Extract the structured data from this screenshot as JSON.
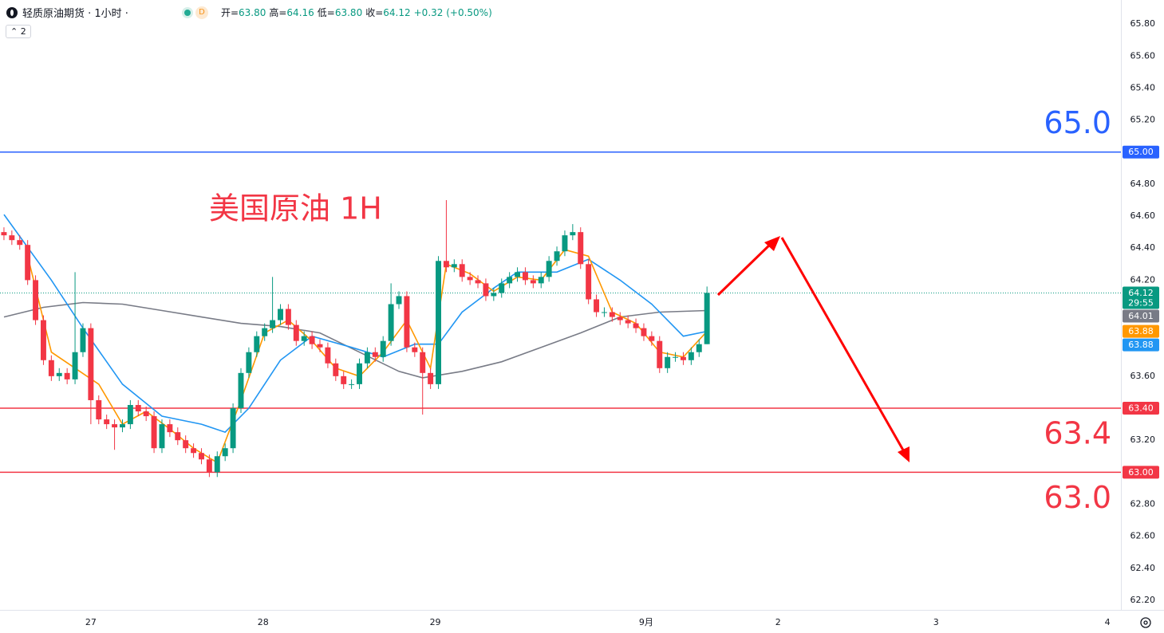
{
  "header": {
    "symbol": "轻质原油期货 · 1小时 ·",
    "badge": "D",
    "ohlc": [
      {
        "label": "开=",
        "value": "63.80"
      },
      {
        "label": "高=",
        "value": "64.16"
      },
      {
        "label": "低=",
        "value": "63.80"
      },
      {
        "label": "收=",
        "value": "64.12"
      }
    ],
    "change": "+0.32 (+0.50%)",
    "indicator_count": "2"
  },
  "chart_data": {
    "type": "candlestick",
    "annotation": "美国原油 1H",
    "up_color": "#089981",
    "down_color": "#f23645",
    "x": [
      0,
      1,
      2,
      3,
      4,
      5,
      6,
      7,
      8,
      9,
      10,
      11,
      12,
      13,
      14,
      15,
      16,
      17,
      18,
      19,
      20,
      21,
      22,
      23,
      24,
      25,
      26,
      27,
      28,
      29,
      30,
      31,
      32,
      33,
      34,
      35,
      36,
      37,
      38,
      39,
      40,
      41,
      42,
      43,
      44,
      45,
      46,
      47,
      48,
      49,
      50,
      51,
      52,
      53,
      54,
      55,
      56,
      57,
      58,
      59,
      60,
      61,
      62,
      63,
      64,
      65,
      66,
      67,
      68,
      69,
      70,
      71,
      72,
      73,
      74,
      75,
      76,
      77,
      78,
      79,
      80,
      81,
      82,
      83,
      84,
      85,
      86,
      87,
      88,
      89
    ],
    "open": [
      64.5,
      64.48,
      64.45,
      64.42,
      64.2,
      63.95,
      63.7,
      63.6,
      63.62,
      63.58,
      63.75,
      63.9,
      63.45,
      63.33,
      63.3,
      63.28,
      63.3,
      63.42,
      63.38,
      63.35,
      63.15,
      63.3,
      63.25,
      63.2,
      63.15,
      63.12,
      63.08,
      63.0,
      63.1,
      63.15,
      63.4,
      63.62,
      63.75,
      63.85,
      63.9,
      63.95,
      64.02,
      63.92,
      63.82,
      63.85,
      63.8,
      63.78,
      63.68,
      63.6,
      63.55,
      63.55,
      63.68,
      63.75,
      63.72,
      63.82,
      64.05,
      64.1,
      63.78,
      63.75,
      63.62,
      63.55,
      64.32,
      64.28,
      64.3,
      64.22,
      64.2,
      64.18,
      64.1,
      64.12,
      64.18,
      64.22,
      64.25,
      64.2,
      64.18,
      64.22,
      64.32,
      64.38,
      64.48,
      64.5,
      64.3,
      64.08,
      64.0,
      64.0,
      63.97,
      63.95,
      63.93,
      63.9,
      63.85,
      63.82,
      63.65,
      63.72,
      63.72,
      63.7,
      63.75,
      63.8
    ],
    "high": [
      64.53,
      64.51,
      64.48,
      64.45,
      64.23,
      63.98,
      63.73,
      63.65,
      63.65,
      64.25,
      63.93,
      63.93,
      63.48,
      63.36,
      63.33,
      63.33,
      63.45,
      63.45,
      63.41,
      63.38,
      63.33,
      63.33,
      63.28,
      63.23,
      63.18,
      63.15,
      63.11,
      63.13,
      63.18,
      63.43,
      63.65,
      63.78,
      63.88,
      63.93,
      64.22,
      64.05,
      64.05,
      63.95,
      63.88,
      63.88,
      63.83,
      63.81,
      63.71,
      63.63,
      63.58,
      63.71,
      63.78,
      63.78,
      63.85,
      64.18,
      64.13,
      64.13,
      63.81,
      63.78,
      63.65,
      64.35,
      64.7,
      64.33,
      64.33,
      64.25,
      64.23,
      64.21,
      64.15,
      64.21,
      64.25,
      64.28,
      64.28,
      64.23,
      64.25,
      64.35,
      64.41,
      64.51,
      64.55,
      64.53,
      64.33,
      64.11,
      64.03,
      64.03,
      64.0,
      63.98,
      63.96,
      63.93,
      63.88,
      63.85,
      63.75,
      63.75,
      63.75,
      63.78,
      63.83,
      64.16
    ],
    "low": [
      64.45,
      64.42,
      64.39,
      64.17,
      63.92,
      63.67,
      63.57,
      63.57,
      63.55,
      63.55,
      63.72,
      63.3,
      63.3,
      63.27,
      63.14,
      63.25,
      63.27,
      63.35,
      63.32,
      63.12,
      63.12,
      63.22,
      63.17,
      63.12,
      63.09,
      63.05,
      62.97,
      62.97,
      63.07,
      63.12,
      63.37,
      63.59,
      63.72,
      63.82,
      63.87,
      63.92,
      63.89,
      63.79,
      63.79,
      63.77,
      63.75,
      63.65,
      63.57,
      63.52,
      63.52,
      63.52,
      63.65,
      63.69,
      63.69,
      63.79,
      64.02,
      63.75,
      63.72,
      63.36,
      63.52,
      63.52,
      64.25,
      64.25,
      64.19,
      64.17,
      64.15,
      64.07,
      64.07,
      64.09,
      64.15,
      64.19,
      64.17,
      64.15,
      64.15,
      64.19,
      64.29,
      64.35,
      64.45,
      64.27,
      64.05,
      63.97,
      63.97,
      63.94,
      63.92,
      63.9,
      63.87,
      63.82,
      63.79,
      63.62,
      63.62,
      63.69,
      63.67,
      63.67,
      63.72,
      63.8
    ],
    "close": [
      64.48,
      64.45,
      64.42,
      64.2,
      63.95,
      63.7,
      63.6,
      63.62,
      63.58,
      63.75,
      63.9,
      63.45,
      63.33,
      63.3,
      63.28,
      63.3,
      63.42,
      63.38,
      63.35,
      63.15,
      63.3,
      63.25,
      63.2,
      63.15,
      63.12,
      63.08,
      63.0,
      63.1,
      63.15,
      63.4,
      63.62,
      63.75,
      63.85,
      63.9,
      63.95,
      64.02,
      63.92,
      63.82,
      63.85,
      63.8,
      63.78,
      63.68,
      63.6,
      63.55,
      63.55,
      63.68,
      63.75,
      63.72,
      63.82,
      64.05,
      64.1,
      63.78,
      63.75,
      63.62,
      63.55,
      64.32,
      64.28,
      64.3,
      64.22,
      64.2,
      64.18,
      64.1,
      64.12,
      64.18,
      64.22,
      64.25,
      64.2,
      64.18,
      64.22,
      64.32,
      64.38,
      64.48,
      64.5,
      64.3,
      64.08,
      64.0,
      64.0,
      63.97,
      63.95,
      63.93,
      63.9,
      63.85,
      63.82,
      63.65,
      63.72,
      63.72,
      63.7,
      63.75,
      63.8,
      64.12
    ],
    "series": [
      {
        "color": "#787b86",
        "x": [
          0,
          5,
          10,
          15,
          20,
          25,
          30,
          35,
          40,
          45,
          50,
          53,
          58,
          63,
          68,
          73,
          78,
          83,
          89
        ],
        "values": [
          63.97,
          64.03,
          64.06,
          64.05,
          64.01,
          63.97,
          63.93,
          63.91,
          63.87,
          63.75,
          63.63,
          63.59,
          63.63,
          63.69,
          63.78,
          63.87,
          63.97,
          64.0,
          64.01
        ]
      },
      {
        "color": "#2196f3",
        "x": [
          0,
          6,
          10,
          15,
          20,
          25,
          28,
          31,
          35,
          39,
          44,
          48,
          52,
          55,
          58,
          62,
          65,
          70,
          74,
          78,
          82,
          86,
          89
        ],
        "values": [
          64.61,
          64.2,
          63.9,
          63.55,
          63.35,
          63.3,
          63.25,
          63.4,
          63.7,
          63.85,
          63.78,
          63.72,
          63.8,
          63.8,
          64.0,
          64.15,
          64.25,
          64.25,
          64.33,
          64.2,
          64.05,
          63.85,
          63.88
        ]
      },
      {
        "color": "#ff9800",
        "x": [
          3,
          6,
          9,
          12,
          15,
          18,
          21,
          24,
          27,
          30,
          33,
          36,
          39,
          42,
          45,
          48,
          51,
          54,
          56,
          59,
          62,
          65,
          68,
          71,
          74,
          77,
          80,
          83,
          86,
          89
        ],
        "values": [
          64.35,
          63.75,
          63.65,
          63.55,
          63.3,
          63.38,
          63.27,
          63.15,
          63.06,
          63.45,
          63.87,
          63.95,
          63.82,
          63.65,
          63.6,
          63.75,
          63.95,
          63.65,
          64.3,
          64.24,
          64.13,
          64.22,
          64.2,
          64.39,
          64.35,
          64.0,
          63.93,
          63.75,
          63.72,
          63.88
        ]
      }
    ],
    "xlim": [
      -0.5,
      141.4
    ],
    "xticks": [
      {
        "value": 11,
        "label": "27"
      },
      {
        "value": 32.8,
        "label": "28"
      },
      {
        "value": 54.6,
        "label": "29"
      },
      {
        "value": 81.3,
        "label": "9月"
      },
      {
        "value": 98,
        "label": "2"
      },
      {
        "value": 118,
        "label": "3"
      },
      {
        "value": 139.7,
        "label": "4"
      }
    ],
    "ylim": [
      62.14,
      65.95
    ],
    "yticks": [
      {
        "value": 65.8,
        "label": "65.80"
      },
      {
        "value": 65.6,
        "label": "65.60"
      },
      {
        "value": 65.4,
        "label": "65.40"
      },
      {
        "value": 65.2,
        "label": "65.20"
      },
      {
        "value": 64.8,
        "label": "64.80"
      },
      {
        "value": 64.6,
        "label": "64.60"
      },
      {
        "value": 64.4,
        "label": "64.40"
      },
      {
        "value": 64.2,
        "label": "64.20"
      },
      {
        "value": 63.6,
        "label": "63.60"
      },
      {
        "value": 63.2,
        "label": "63.20"
      },
      {
        "value": 62.8,
        "label": "62.80"
      },
      {
        "value": 62.6,
        "label": "62.60"
      },
      {
        "value": 62.4,
        "label": "62.40"
      },
      {
        "value": 62.2,
        "label": "62.20"
      }
    ],
    "hlines": [
      {
        "value": 65.0,
        "annotation": "65.0",
        "color": "#2962ff"
      },
      {
        "value": 63.4,
        "annotation": "63.4",
        "color": "#f23645"
      },
      {
        "value": 63.0,
        "annotation": "63.0",
        "color": "#f23645"
      }
    ],
    "price_tags": [
      {
        "value": 65.0,
        "label": "65.00",
        "color": "#2962ff"
      },
      {
        "value": 64.12,
        "label": "64.12",
        "sublabel": "29:55",
        "color": "#089981"
      },
      {
        "value": 64.01,
        "label": "64.01",
        "color": "#787b86"
      },
      {
        "value": 63.88,
        "label": "63.88",
        "color": "#ff9800"
      },
      {
        "value": 63.88,
        "label": "63.88",
        "color": "#2196f3"
      },
      {
        "value": 63.4,
        "label": "63.40",
        "color": "#f23645"
      },
      {
        "value": 63.0,
        "label": "63.00",
        "color": "#f23645"
      }
    ]
  }
}
